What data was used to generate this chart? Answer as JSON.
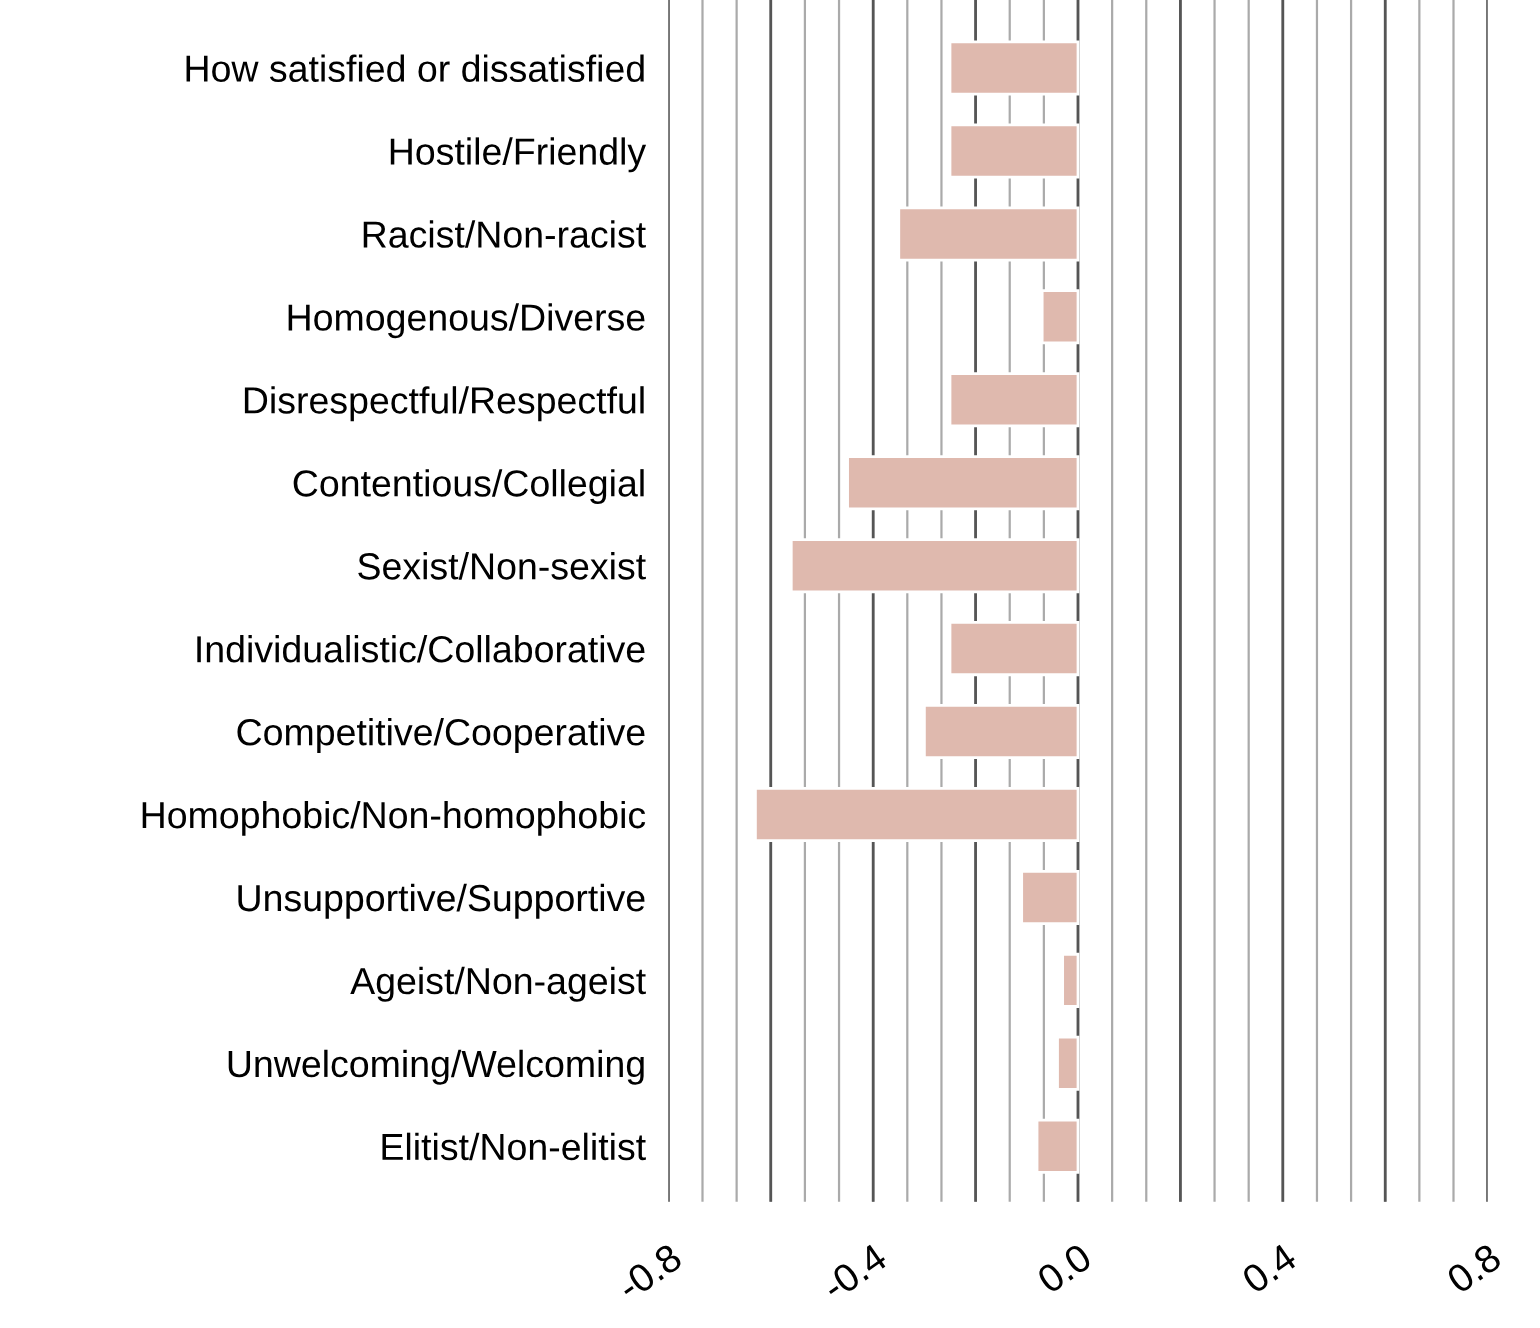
{
  "chart_data": {
    "type": "bar",
    "orientation": "horizontal",
    "categories": [
      "How satisfied or dissatisfied",
      "Hostile/Friendly",
      "Racist/Non-racist",
      "Homogenous/Diverse",
      "Disrespectful/Respectful",
      "Contentious/Collegial",
      "Sexist/Non-sexist",
      "Individualistic/Collaborative",
      "Competitive/Cooperative",
      "Homophobic/Non-homophobic",
      "Unsupportive/Supportive",
      "Ageist/Non-ageist",
      "Unwelcoming/Welcoming",
      "Elitist/Non-elitist"
    ],
    "values": [
      -0.25,
      -0.25,
      -0.35,
      -0.07,
      -0.25,
      -0.45,
      -0.56,
      -0.25,
      -0.3,
      -0.63,
      -0.11,
      -0.03,
      -0.04,
      -0.08
    ],
    "color": "#dfb9ae",
    "xlim": [
      -0.8,
      0.8
    ],
    "xticks": [
      -0.8,
      {
        "value": -0.6,
        "label": null
      },
      -0.4,
      {
        "value": -0.2,
        "label": null
      },
      {
        "value": 0,
        "label": "0.0"
      },
      {
        "value": 0.2,
        "label": null
      },
      0.4,
      {
        "value": 0.6,
        "label": null
      },
      0.8
    ],
    "grid": "x",
    "legend": false
  }
}
